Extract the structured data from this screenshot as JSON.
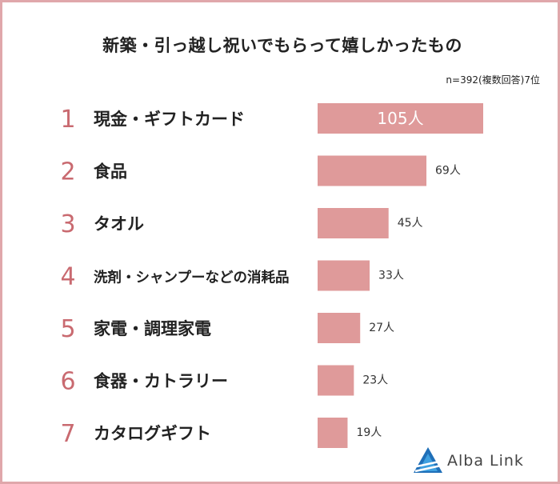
{
  "header": {
    "title": "新築・引っ越し祝いでもらって嬉しかったもの",
    "note": "n=392(複数回答)7位"
  },
  "colors": {
    "border": "#e0a7ab",
    "bar": "#df9a9a",
    "rank": "#c96a70",
    "text": "#222222"
  },
  "brand": {
    "name": "Alba Link",
    "icon": "alba-link-logo-icon"
  },
  "chart_data": {
    "type": "bar",
    "orientation": "horizontal",
    "title": "新築・引っ越し祝いでもらって嬉しかったもの",
    "categories": [
      "現金・ギフトカード",
      "食品",
      "タオル",
      "洗剤・シャンプーなどの消耗品",
      "家電・調理家電",
      "食器・カトラリー",
      "カタログギフト"
    ],
    "ranks": [
      "1",
      "2",
      "3",
      "4",
      "5",
      "6",
      "7"
    ],
    "values": [
      105,
      69,
      45,
      33,
      27,
      23,
      19
    ],
    "value_labels": [
      "105人",
      "69人",
      "45人",
      "33人",
      "27人",
      "23人",
      "19人"
    ],
    "unit": "人",
    "xlim": [
      0,
      105
    ],
    "grid": false,
    "legend": "none"
  }
}
